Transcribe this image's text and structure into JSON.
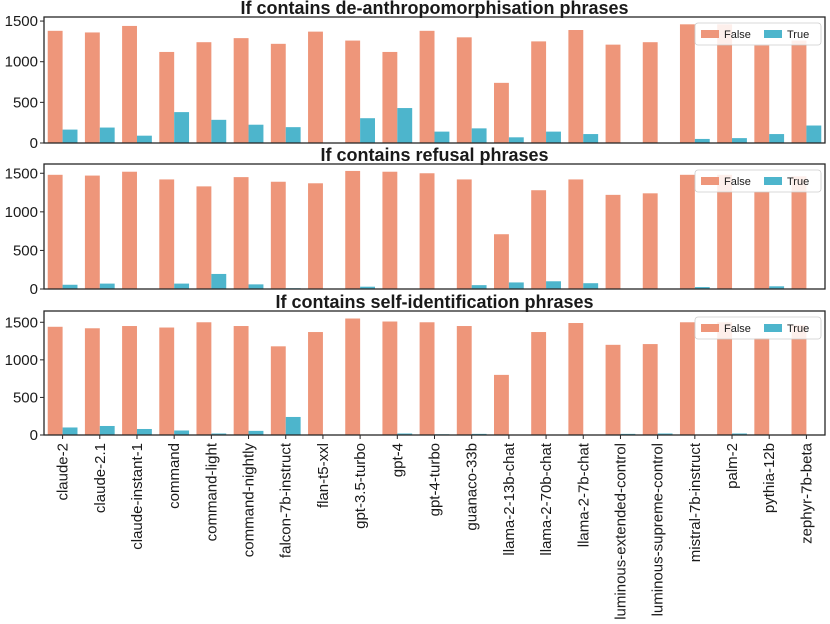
{
  "chart_data": {
    "type": "bar",
    "categories": [
      "claude-2",
      "claude-2.1",
      "claude-instant-1",
      "command",
      "command-light",
      "command-nightly",
      "falcon-7b-instruct",
      "flan-t5-xxl",
      "gpt-3.5-turbo",
      "gpt-4",
      "gpt-4-turbo",
      "guanaco-33b",
      "llama-2-13b-chat",
      "llama-2-70b-chat",
      "llama-2-7b-chat",
      "luminous-extended-control",
      "luminous-supreme-control",
      "mistral-7b-instruct",
      "palm-2",
      "pythia-12b",
      "zephyr-7b-beta"
    ],
    "colors": {
      "False": "#ee967a",
      "True": "#4db5cc"
    },
    "legend": {
      "entries": [
        "False",
        "True"
      ],
      "location": "top-right"
    },
    "panels": [
      {
        "title": "If contains de-anthropomorphisation phrases",
        "ylim": [
          0,
          1550
        ],
        "yticks": [
          0,
          500,
          1000,
          1500
        ],
        "series": [
          {
            "name": "False",
            "values": [
              1380,
              1360,
              1440,
              1120,
              1240,
              1290,
              1220,
              1370,
              1260,
              1120,
              1380,
              1300,
              740,
              1250,
              1390,
              1210,
              1240,
              1460,
              1460,
              1200,
              1260
            ]
          },
          {
            "name": "True",
            "values": [
              165,
              190,
              90,
              380,
              285,
              225,
              195,
              0,
              305,
              430,
              140,
              180,
              70,
              140,
              110,
              0,
              0,
              50,
              60,
              110,
              215
            ]
          }
        ]
      },
      {
        "title": "If contains refusal phrases",
        "ylim": [
          0,
          1620
        ],
        "yticks": [
          0,
          500,
          1000,
          1500
        ],
        "series": [
          {
            "name": "False",
            "values": [
              1480,
              1470,
              1520,
              1420,
              1330,
              1450,
              1390,
              1370,
              1530,
              1520,
              1500,
              1420,
              710,
              1280,
              1420,
              1220,
              1240,
              1480,
              1480,
              1260,
              1460
            ]
          },
          {
            "name": "True",
            "values": [
              55,
              70,
              0,
              70,
              195,
              60,
              10,
              0,
              30,
              0,
              0,
              50,
              85,
              100,
              75,
              0,
              0,
              25,
              0,
              35,
              0
            ]
          }
        ]
      },
      {
        "title": "If contains self-identification phrases",
        "ylim": [
          0,
          1650
        ],
        "yticks": [
          0,
          500,
          1000,
          1500
        ],
        "series": [
          {
            "name": "False",
            "values": [
              1440,
              1420,
              1450,
              1430,
              1500,
              1450,
              1180,
              1370,
              1550,
              1510,
              1500,
              1450,
              800,
              1370,
              1490,
              1200,
              1210,
              1500,
              1500,
              1290,
              1460
            ]
          },
          {
            "name": "True",
            "values": [
              100,
              120,
              80,
              60,
              20,
              55,
              240,
              0,
              0,
              20,
              10,
              15,
              0,
              0,
              0,
              15,
              20,
              0,
              20,
              0,
              0
            ]
          }
        ]
      }
    ]
  }
}
